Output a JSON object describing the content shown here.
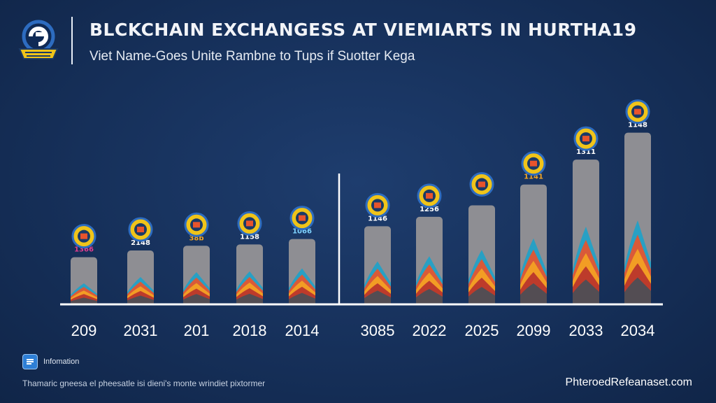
{
  "header": {
    "title": "BLCKCHAIN EXCHANGESS AT VIEMIARTS IN HURTHA19",
    "subtitle": "Viet Name-Goes Unite Rambne to Tups if Suotter Kega"
  },
  "logo": {
    "icon": "coin-globe-logo-icon",
    "accent": "#f0c419",
    "ring": "#2d6cc0"
  },
  "colors": {
    "bar": "#8e8e93",
    "axis": "#ffffff",
    "flame": [
      "#1fa2c8",
      "#e8542c",
      "#f4a323",
      "#b8332c",
      "#4a4f57"
    ],
    "label_palette": [
      "#e23d8f",
      "#ffffff",
      "#f5a623",
      "#ffffff",
      "#7fd3ff",
      "#ffffff",
      "#ffffff",
      "#ffffff",
      "#f5a623",
      "#ffffff",
      "#ffffff"
    ]
  },
  "chart_data": {
    "type": "bar",
    "title": "BLCKCHAIN EXCHANGESS AT VIEMIARTS IN HURTHA19",
    "subtitle": "Viet Name-Goes Unite Rambne to Tups if Suotter Kega",
    "categories": [
      "209",
      "2031",
      "201",
      "2018",
      "2014",
      "3085",
      "2022",
      "2025",
      "2099",
      "2033",
      "2034"
    ],
    "data_labels": [
      "1366",
      "2148",
      "38b",
      "1158",
      "1066",
      "1146",
      "1256",
      "",
      "1141",
      "1311",
      "1148"
    ],
    "values": [
      70,
      80,
      87,
      89,
      97,
      116,
      130,
      147,
      178,
      215,
      255
    ],
    "ylim": [
      0,
      265
    ],
    "grid": false,
    "legend": "none",
    "separator_after_index": 4
  },
  "footer": {
    "badge_label": "Infomation",
    "footnote": "Thamaric gneesa el pheesatle isi dieni's monte wrindiet pixtormer",
    "source": "PhteroedRefeanaset.com"
  }
}
